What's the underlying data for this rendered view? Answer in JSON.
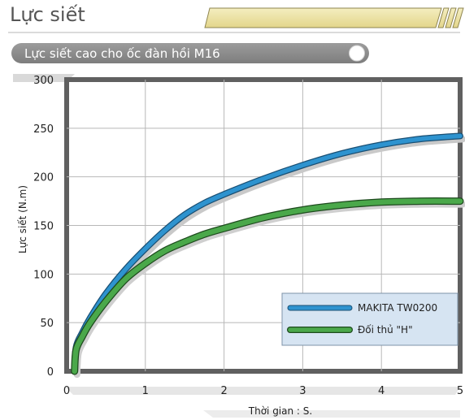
{
  "header": {
    "title": "Lực siết"
  },
  "colors": {
    "accent_band": "#efe6a8",
    "pill": "#8d8d8d",
    "frame": "#606060",
    "series_1": "#2e93cf",
    "series_2": "#4aa84a",
    "legend_bg": "#d6e4f2"
  },
  "chart_data": {
    "type": "line",
    "title": "Lực siết cao cho ốc đàn hồi  M16",
    "xlabel": "Thời gian  :  S.",
    "ylabel": "Lực siết (N.m)",
    "xlim": [
      0,
      5
    ],
    "ylim": [
      0,
      300
    ],
    "xticks": [
      0,
      1,
      2,
      3,
      4,
      5
    ],
    "yticks": [
      0,
      50,
      100,
      150,
      200,
      250,
      300
    ],
    "grid": true,
    "legend_position": "bottom-right",
    "series": [
      {
        "name": "MAKITA  TW0200",
        "color": "#2e93cf",
        "x": [
          0.1,
          0.12,
          0.2,
          0.3,
          0.5,
          0.75,
          1.0,
          1.25,
          1.5,
          1.75,
          2.0,
          2.5,
          3.0,
          3.5,
          4.0,
          4.5,
          5.0
        ],
        "y": [
          0,
          25,
          40,
          55,
          80,
          105,
          126,
          145,
          161,
          173,
          182,
          198,
          212,
          224,
          233,
          239,
          242
        ]
      },
      {
        "name": "Đối thủ \"H\"",
        "color": "#4aa84a",
        "x": [
          0.1,
          0.12,
          0.2,
          0.3,
          0.5,
          0.75,
          1.0,
          1.25,
          1.5,
          1.75,
          2.0,
          2.5,
          3.0,
          3.5,
          4.0,
          4.5,
          5.0
        ],
        "y": [
          0,
          22,
          36,
          50,
          72,
          95,
          111,
          124,
          133,
          141,
          147,
          158,
          166,
          171,
          174,
          175,
          175
        ]
      }
    ]
  }
}
